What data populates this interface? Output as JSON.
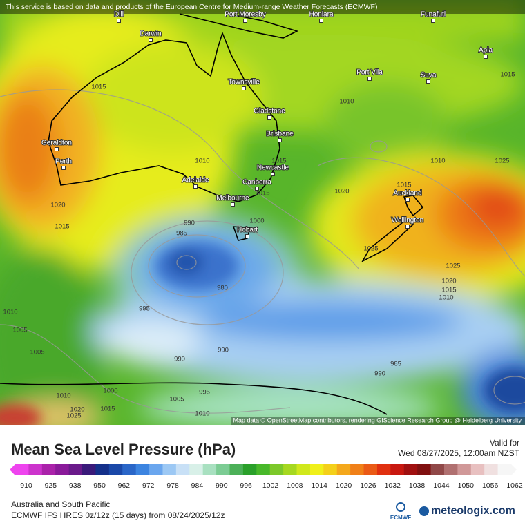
{
  "attribution_top": "This service is based on data and products of the European Centre for Medium-range Weather Forecasts (ECMWF)",
  "map_credit": "Map data © OpenStreetMap contributors, rendering GIScience Research Group @ Heidelberg University",
  "cities": [
    {
      "label": "Dili"
    },
    {
      "label": "Port Moresby"
    },
    {
      "label": "Honiara"
    },
    {
      "label": "Funafuti"
    },
    {
      "label": "Darwin"
    },
    {
      "label": "Apia"
    },
    {
      "label": "Port Vila"
    },
    {
      "label": "Suva"
    },
    {
      "label": "Townsville"
    },
    {
      "label": "Gladstone"
    },
    {
      "label": "Brisbane"
    },
    {
      "label": "Geraldton"
    },
    {
      "label": "Perth"
    },
    {
      "label": "Newcastle"
    },
    {
      "label": "Canberra"
    },
    {
      "label": "Adelaide"
    },
    {
      "label": "Melbourne"
    },
    {
      "label": "Auckland"
    },
    {
      "label": "Wellington"
    },
    {
      "label": "Hobart"
    }
  ],
  "isobar_labels": [
    1015,
    1010,
    1015,
    1010,
    1015,
    1020,
    1015,
    1010,
    1025,
    1015,
    1020,
    1015,
    990,
    985,
    1000,
    1025,
    1025,
    1020,
    1015,
    1010,
    980,
    995,
    1010,
    1005,
    990,
    990,
    1005,
    985,
    990,
    1000,
    995,
    1010,
    1005,
    1020,
    1015,
    1025,
    1010
  ],
  "title": "Mean Sea Level Pressure (hPa)",
  "valid": {
    "label": "Valid for",
    "time": "Wed 08/27/2025, 12:00am NZST"
  },
  "colorbar_ticks": [
    910,
    925,
    938,
    950,
    962,
    972,
    978,
    984,
    990,
    996,
    1002,
    1008,
    1014,
    1020,
    1026,
    1032,
    1038,
    1044,
    1050,
    1056,
    1062
  ],
  "colorbar_colors": [
    "#ee44ee",
    "#cc33cc",
    "#aa22aa",
    "#8a1a9a",
    "#6a1a8a",
    "#3a1a7a",
    "#14308a",
    "#1a48a8",
    "#2a66c8",
    "#3c84e0",
    "#6aa6ee",
    "#9cc8f4",
    "#c8e0f6",
    "#d8f0e8",
    "#a8e0c0",
    "#7ccc94",
    "#4cb058",
    "#2aa02a",
    "#48b82a",
    "#7cc82a",
    "#a6d820",
    "#d0e81c",
    "#f0f01a",
    "#f4d01a",
    "#f4a81c",
    "#f08018",
    "#ea5a16",
    "#e03010",
    "#c81810",
    "#a01010",
    "#801010",
    "#904848",
    "#b07070",
    "#d09898",
    "#e8c0c0",
    "#f0e0e0",
    "#f6f6f6"
  ],
  "region": "Australia and South Pacific",
  "model": "ECMWF IFS HRES 0z/12z (15 days)  from  08/24/2025/12z",
  "logos": [
    "ECMWF",
    "meteologix.com"
  ]
}
